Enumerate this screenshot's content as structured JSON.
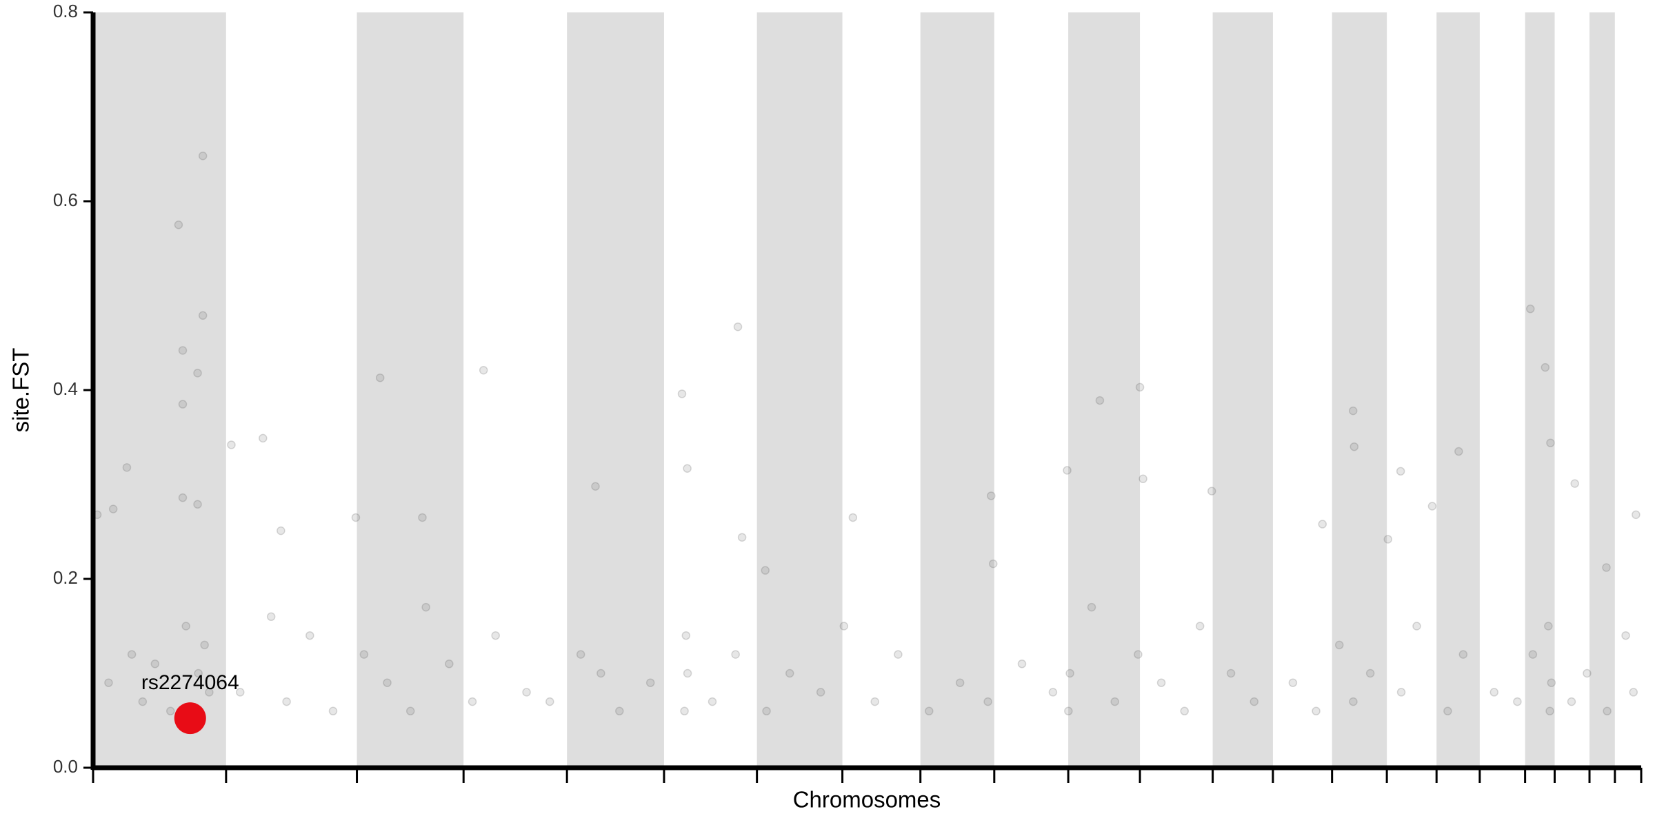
{
  "chart_data": {
    "type": "scatter",
    "y_label": "site.FST",
    "x_label": "Chromosomes",
    "xlim": [
      0,
      100
    ],
    "ylim": [
      0,
      0.8
    ],
    "yticks": [
      {
        "value": 0,
        "label": "0.0"
      },
      0.2,
      0.4,
      0.6,
      0.8
    ],
    "chromosome_boundaries": [
      8.59,
      17.04,
      23.93,
      30.61,
      36.88,
      42.88,
      48.4,
      53.44,
      58.21,
      62.99,
      67.62,
      72.32,
      76.21,
      80.03,
      83.57,
      86.78,
      89.57,
      92.5,
      94.41,
      96.66,
      98.3
    ],
    "band_color": "#dedede",
    "points": {
      "color": "#555555",
      "x": [
        7.09,
        5.52,
        7.09,
        5.79,
        6.75,
        5.79,
        8.93,
        10.97,
        2.18,
        5.79,
        6.75,
        0.27,
        1.3,
        12.13,
        18.54,
        25.22,
        21.27,
        16.97,
        32.45,
        38.04,
        38.38,
        41.65,
        43.42,
        49.08,
        58.01,
        62.92,
        65.03,
        67.62,
        67.82,
        72.26,
        81.39,
        81.46,
        88.21,
        84.46,
        92.84,
        93.8,
        94.14,
        95.71,
        99.66,
        97.75,
        41.92,
        58.14,
        79.41,
        83.64,
        86.5,
        1.0,
        2.5,
        3.2,
        4.0,
        5.0,
        6.0,
        6.8,
        7.2,
        7.5,
        9.5,
        11.5,
        12.5,
        14.0,
        15.5,
        17.5,
        19.0,
        20.5,
        21.5,
        23.0,
        24.5,
        26.0,
        28.0,
        29.5,
        31.5,
        32.8,
        34.0,
        36.0,
        38.2,
        38.4,
        38.3,
        40.0,
        41.5,
        43.5,
        45.0,
        47.0,
        48.5,
        50.5,
        52.0,
        54.0,
        56.0,
        57.8,
        60.0,
        62.0,
        63.0,
        63.1,
        64.5,
        66.0,
        67.5,
        69.0,
        70.5,
        71.5,
        73.5,
        75.0,
        77.5,
        79.0,
        80.5,
        81.4,
        82.5,
        84.5,
        85.5,
        87.5,
        88.5,
        90.5,
        92.0,
        93.0,
        94.1,
        94.2,
        94.0,
        95.5,
        96.5,
        97.8,
        99.0,
        99.5
      ],
      "y": [
        0.648,
        0.575,
        0.479,
        0.442,
        0.418,
        0.385,
        0.342,
        0.349,
        0.318,
        0.286,
        0.279,
        0.268,
        0.274,
        0.251,
        0.413,
        0.421,
        0.265,
        0.265,
        0.298,
        0.396,
        0.317,
        0.467,
        0.209,
        0.265,
        0.288,
        0.315,
        0.389,
        0.403,
        0.306,
        0.293,
        0.378,
        0.34,
        0.335,
        0.314,
        0.486,
        0.424,
        0.344,
        0.301,
        0.268,
        0.212,
        0.244,
        0.216,
        0.258,
        0.242,
        0.277,
        0.09,
        0.12,
        0.07,
        0.11,
        0.06,
        0.15,
        0.1,
        0.13,
        0.08,
        0.08,
        0.16,
        0.07,
        0.14,
        0.06,
        0.12,
        0.09,
        0.06,
        0.17,
        0.11,
        0.07,
        0.14,
        0.08,
        0.07,
        0.12,
        0.1,
        0.06,
        0.09,
        0.06,
        0.1,
        0.14,
        0.07,
        0.12,
        0.06,
        0.1,
        0.08,
        0.15,
        0.07,
        0.12,
        0.06,
        0.09,
        0.07,
        0.11,
        0.08,
        0.06,
        0.1,
        0.17,
        0.07,
        0.12,
        0.09,
        0.06,
        0.15,
        0.1,
        0.07,
        0.09,
        0.06,
        0.13,
        0.07,
        0.1,
        0.08,
        0.15,
        0.06,
        0.12,
        0.08,
        0.07,
        0.12,
        0.06,
        0.09,
        0.15,
        0.07,
        0.1,
        0.06,
        0.14,
        0.08
      ]
    },
    "highlight": {
      "label": "rs2274064",
      "x": 6.27,
      "y": 0.0525,
      "color": "#e8000b"
    }
  }
}
